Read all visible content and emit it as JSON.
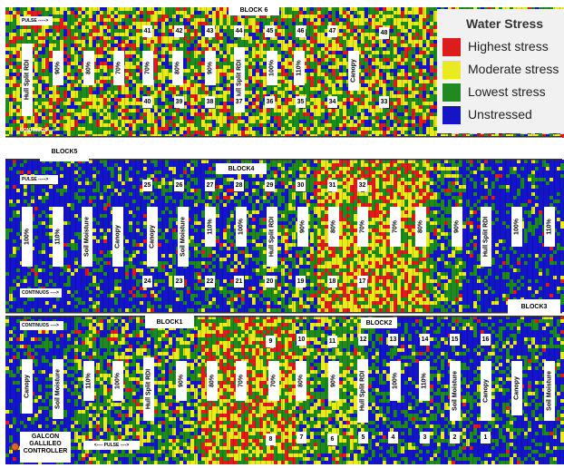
{
  "colors": {
    "highest": "#dd1c1c",
    "moderate": "#eaea21",
    "lowest": "#1f8a1f",
    "unstressed": "#1515c8",
    "divider": "#333333"
  },
  "legend": {
    "title": "Water Stress",
    "items": [
      {
        "label": "Highest stress",
        "color": "#dd1c1c"
      },
      {
        "label": "Moderate stress",
        "color": "#eaea21"
      },
      {
        "label": "Lowest stress",
        "color": "#1f8a1f"
      },
      {
        "label": "Unstressed",
        "color": "#1515c8"
      }
    ]
  },
  "blocks": {
    "b6": "BLOCK 6",
    "b5": "BLOCK5",
    "b4": "BLOCK4",
    "b3": "BLOCK3",
    "b1": "BLOCK1",
    "b2": "BLOCK2"
  },
  "markers": {
    "pulse": "PULSE ----->",
    "continuous": "CONTINUOS ---->",
    "pulse_both": "<---- PULSE ---->"
  },
  "controller": {
    "line1": "GALCON",
    "line2": "GALLILEO",
    "line3": "CONTROLLER"
  },
  "treatments": {
    "r1": [
      "Hull Split RDI",
      "90%",
      "80%",
      "70%",
      "70%",
      "80%",
      "90%",
      "Hull Split RDI",
      "100%",
      "110%",
      "Canopy"
    ],
    "r2": [
      "100%",
      "110%",
      "Soil Moisture",
      "Canopy",
      "Canopy",
      "Soil Moisture",
      "110%",
      "100%",
      "Hull Split RDI",
      "90%",
      "80%",
      "70%",
      "70%",
      "80%",
      "90%",
      "Hull Split RDI",
      "100%",
      "110%"
    ],
    "r3": [
      "Canopy",
      "Soil Moisture",
      "110%",
      "100%",
      "Hull Split RDI",
      "90%",
      "80%",
      "70%",
      "70%",
      "80%",
      "90%",
      "Hull Split RDI",
      "100%",
      "110%",
      "Soil Moisture",
      "Canopy",
      "Canopy",
      "Soil Moisture"
    ]
  },
  "plots": {
    "r1_top": [
      "41",
      "42",
      "43",
      "44",
      "45",
      "46",
      "47",
      "48"
    ],
    "r1_bottom": [
      "40",
      "39",
      "38",
      "37",
      "36",
      "35",
      "34",
      "33"
    ],
    "r2_top": [
      "25",
      "26",
      "27",
      "28",
      "29",
      "30",
      "31",
      "32"
    ],
    "r2_bottom": [
      "24",
      "23",
      "22",
      "21",
      "20",
      "19",
      "18",
      "17"
    ],
    "r3_top": [
      "9",
      "10",
      "11",
      "12",
      "13",
      "14",
      "15",
      "16"
    ],
    "r3_bottom": [
      "8",
      "7",
      "6",
      "5",
      "4",
      "3",
      "2",
      "1"
    ]
  }
}
